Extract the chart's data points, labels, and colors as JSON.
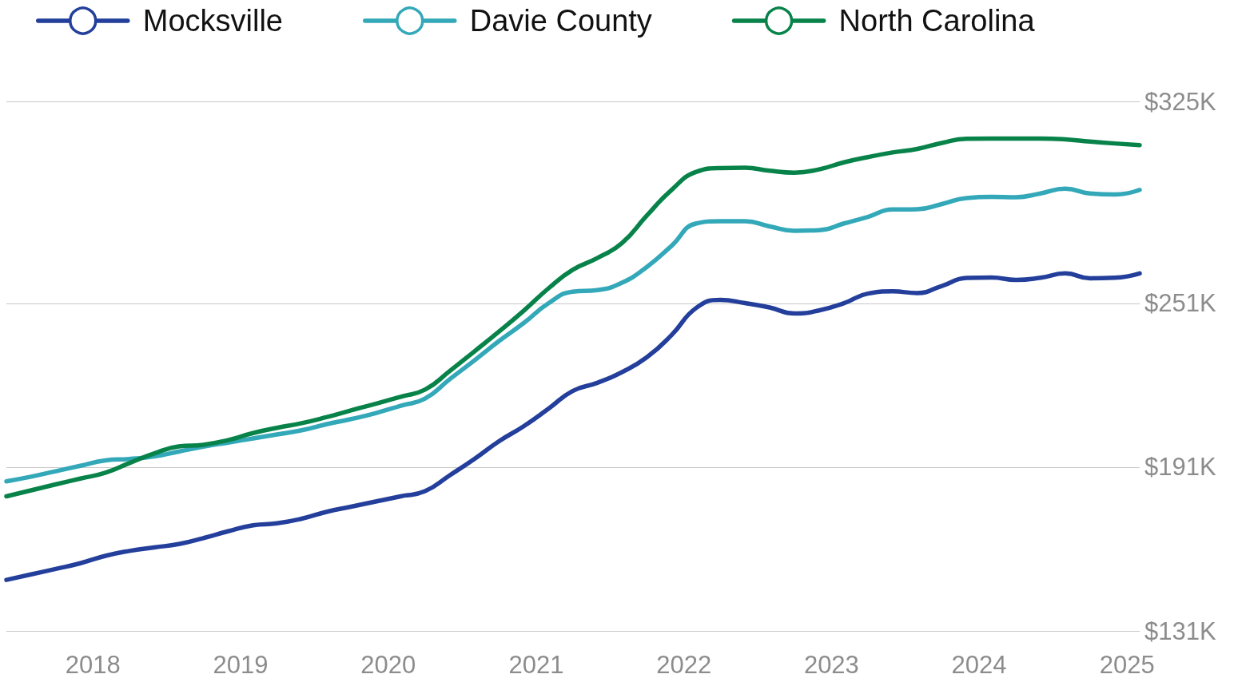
{
  "chart_data": {
    "type": "line",
    "legend": "top left",
    "grid": "y",
    "x": [
      "2017-06",
      "2017-08",
      "2017-10",
      "2017-12",
      "2018-02",
      "2018-04",
      "2018-06",
      "2018-08",
      "2018-10",
      "2018-12",
      "2019-02",
      "2019-04",
      "2019-06",
      "2019-08",
      "2019-10",
      "2019-12",
      "2020-02",
      "2020-04",
      "2020-06",
      "2020-08",
      "2020-10",
      "2020-12",
      "2021-02",
      "2021-04",
      "2021-06",
      "2021-08",
      "2021-10",
      "2021-12",
      "2022-02",
      "2022-04",
      "2022-06",
      "2022-08",
      "2022-10",
      "2022-12",
      "2023-02",
      "2023-04",
      "2023-06",
      "2023-08",
      "2023-10",
      "2023-12",
      "2024-02",
      "2024-04",
      "2024-06",
      "2024-08",
      "2024-10",
      "2024-12",
      "2025-02"
    ],
    "xlim": [
      "2017-06",
      "2025-02"
    ],
    "xticks": [
      "2018",
      "2019",
      "2020",
      "2021",
      "2022",
      "2023",
      "2024",
      "2025"
    ],
    "ylim": [
      131,
      325
    ],
    "yticks": [
      {
        "value": 131,
        "label": "$131K"
      },
      {
        "value": 191,
        "label": "$191K"
      },
      {
        "value": 251,
        "label": "$251K"
      },
      {
        "value": 325,
        "label": "$325K"
      }
    ],
    "series": [
      {
        "name": "Mocksville",
        "color": "#233f9b",
        "values": [
          149.7,
          151.7,
          153.7,
          155.8,
          158.5,
          160.3,
          161.6,
          162.8,
          165.0,
          167.5,
          169.7,
          170.4,
          172.1,
          174.6,
          176.5,
          178.4,
          180.3,
          182.2,
          188.0,
          194.0,
          200.5,
          206.0,
          212.5,
          218.9,
          221.9,
          225.8,
          231.2,
          239.3,
          249.4,
          252.3,
          251.1,
          249.5,
          247.3,
          248.4,
          251.1,
          254.6,
          255.4,
          254.8,
          257.4,
          260.3,
          260.5,
          259.6,
          260.4,
          262.0,
          260.2,
          260.4,
          262.0
        ]
      },
      {
        "name": "Davie County",
        "color": "#33a8b9",
        "values": [
          185.8,
          187.5,
          189.5,
          191.5,
          193.5,
          194.0,
          194.9,
          196.7,
          198.5,
          200.0,
          201.5,
          203.0,
          204.5,
          206.7,
          208.6,
          210.8,
          213.5,
          216.1,
          223.2,
          230.1,
          237.2,
          243.8,
          251.1,
          255.3,
          255.9,
          258.6,
          264.3,
          272.0,
          280.3,
          281.1,
          281.1,
          279.2,
          277.6,
          277.8,
          280.3,
          282.7,
          285.4,
          285.5,
          287.4,
          289.6,
          290.0,
          289.9,
          291.3,
          293.0,
          291.3,
          290.9,
          292.6
        ]
      },
      {
        "name": "North Carolina",
        "color": "#07834a",
        "values": [
          180.3,
          182.5,
          184.7,
          186.8,
          189.0,
          192.5,
          196.0,
          198.6,
          199.2,
          200.9,
          203.5,
          205.4,
          207.1,
          209.3,
          211.8,
          214.2,
          216.8,
          219.4,
          226.2,
          233.4,
          240.7,
          248.3,
          256.6,
          263.3,
          267.6,
          273.1,
          283.1,
          292.5,
          299.2,
          300.6,
          300.7,
          299.6,
          298.9,
          300.1,
          302.7,
          304.6,
          306.3,
          307.6,
          309.8,
          311.3,
          311.4,
          311.4,
          311.4,
          311.1,
          310.3,
          309.6,
          309.0
        ]
      }
    ]
  }
}
